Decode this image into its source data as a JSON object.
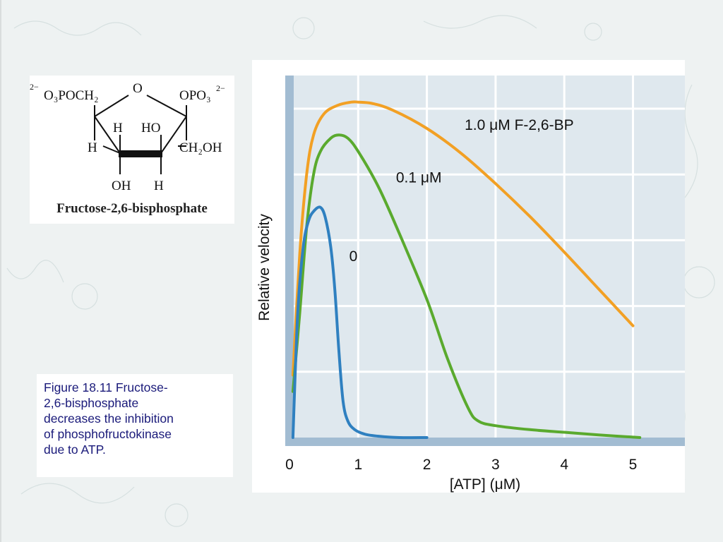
{
  "structure": {
    "caption": "Fructose-2,6-bisphosphate",
    "labels": {
      "left_group_prefix": "2−",
      "left_group": "O₃POCH₂",
      "ring_oxygen": "O",
      "right_group": "OPO₃",
      "right_group_charge": "2−",
      "h_top_left": "H",
      "ho_top": "HO",
      "h_left": "H",
      "ch2oh": "CH₂OH",
      "oh_bottom": "OH",
      "h_bottom": "H"
    }
  },
  "figure_caption": {
    "line1": "Figure 18.11  Fructose-",
    "line2": "2,6-bisphosphate",
    "line3": "decreases the inhibition",
    "line4": "of phosphofructokinase",
    "line5": "due to ATP."
  },
  "chart_data": {
    "type": "line",
    "title": "",
    "xlabel": "[ATP] (μM)",
    "ylabel": "Relative velocity",
    "xlim": [
      0,
      5.5
    ],
    "ylim": [
      0,
      5.5
    ],
    "x_ticks": [
      "0",
      "1",
      "2",
      "3",
      "4",
      "5"
    ],
    "y_tick_values": [
      1,
      2,
      3,
      4,
      5
    ],
    "y_tick_labels_shown": false,
    "grid": true,
    "legend": "inline-labels",
    "series": [
      {
        "name": "1.0 μM F-2,6-BP",
        "color": "#f2a024",
        "x": [
          0.05,
          0.15,
          0.25,
          0.35,
          0.5,
          0.7,
          0.9,
          1.0,
          1.2,
          1.5,
          2.0,
          2.5,
          3.0,
          3.5,
          4.0,
          4.5,
          5.0
        ],
        "y": [
          0.95,
          2.8,
          4.0,
          4.6,
          4.92,
          5.05,
          5.1,
          5.1,
          5.08,
          4.98,
          4.7,
          4.32,
          3.86,
          3.36,
          2.82,
          2.26,
          1.7
        ]
      },
      {
        "name": "0.1 μM",
        "color": "#5aaa2e",
        "x": [
          0.05,
          0.15,
          0.25,
          0.35,
          0.45,
          0.6,
          0.72,
          0.85,
          1.0,
          1.3,
          1.6,
          2.0,
          2.3,
          2.6,
          2.75,
          3.0,
          3.5,
          4.0,
          4.5,
          5.1
        ],
        "y": [
          0.7,
          1.9,
          3.2,
          4.0,
          4.35,
          4.55,
          4.6,
          4.55,
          4.35,
          3.8,
          3.1,
          2.1,
          1.2,
          0.45,
          0.25,
          0.18,
          0.12,
          0.08,
          0.04,
          0.0
        ]
      },
      {
        "name": "0",
        "color": "#2f80c0",
        "x": [
          0.05,
          0.12,
          0.2,
          0.28,
          0.36,
          0.45,
          0.52,
          0.6,
          0.66,
          0.72,
          0.78,
          0.85,
          0.95,
          1.1,
          1.3,
          1.6,
          2.0
        ],
        "y": [
          0.0,
          1.9,
          2.9,
          3.3,
          3.45,
          3.5,
          3.35,
          2.9,
          2.25,
          1.3,
          0.55,
          0.25,
          0.12,
          0.05,
          0.02,
          0.0,
          0.0
        ]
      }
    ],
    "series_labels": [
      {
        "text": "1.0 μM F-2,6-BP",
        "x": 2.55,
        "y": 4.68
      },
      {
        "text": "0.1 μM",
        "x": 1.55,
        "y": 3.88
      },
      {
        "text": "0",
        "x": 0.87,
        "y": 2.68
      }
    ]
  },
  "colors": {
    "plot_background": "#dfe8ee",
    "gridline": "#ffffff",
    "axis_band": "#a2bcd2",
    "caption_text": "#1a1a7a"
  }
}
